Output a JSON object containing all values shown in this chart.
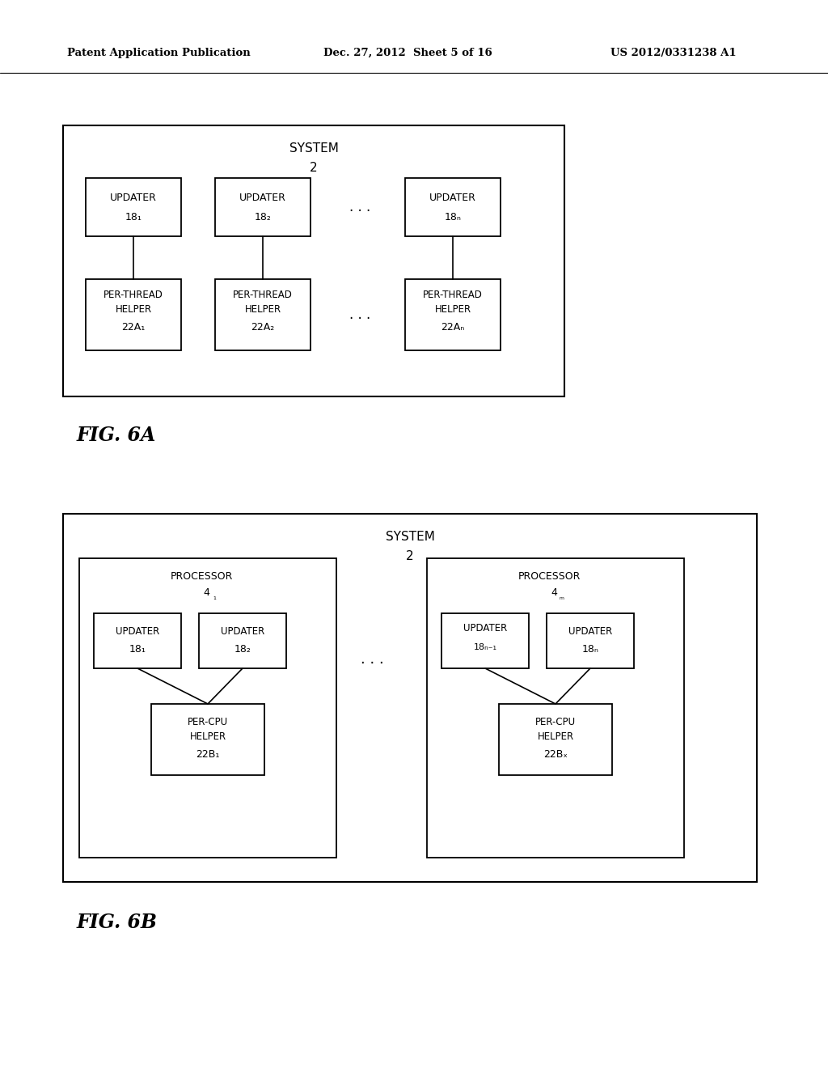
{
  "bg_color": "#ffffff",
  "header_left": "Patent Application Publication",
  "header_mid": "Dec. 27, 2012  Sheet 5 of 16",
  "header_right": "US 2012/0331238 A1",
  "fig6a_label": "FIG. 6A",
  "fig6b_label": "FIG. 6B"
}
